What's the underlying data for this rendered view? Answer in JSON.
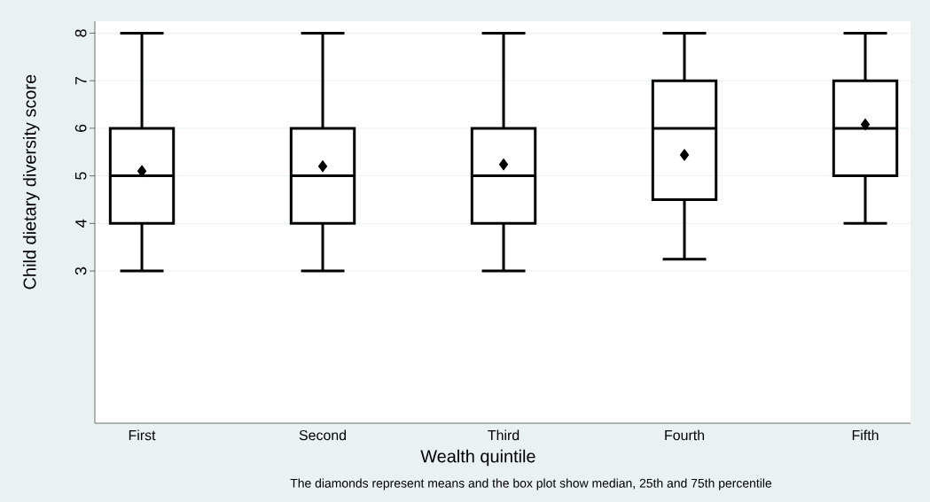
{
  "chart_data": {
    "type": "box",
    "xlabel": "Wealth quintile",
    "ylabel": "Child dietary diversity score",
    "categories": [
      "First",
      "Second",
      "Third",
      "Fourth",
      "Fifth"
    ],
    "boxes": [
      {
        "low": 3,
        "q1": 4,
        "median": 5,
        "q3": 6,
        "high": 8,
        "mean": 5.1
      },
      {
        "low": 3,
        "q1": 4,
        "median": 5,
        "q3": 6,
        "high": 8,
        "mean": 5.2
      },
      {
        "low": 3,
        "q1": 4,
        "median": 5,
        "q3": 6,
        "high": 8,
        "mean": 5.24
      },
      {
        "low": 3.25,
        "q1": 4.5,
        "median": 6,
        "q3": 7,
        "high": 8,
        "mean": 5.44
      },
      {
        "low": 4,
        "q1": 5,
        "median": 6,
        "q3": 7,
        "high": 8,
        "mean": 6.08
      }
    ],
    "color": "#000000",
    "marker": "diamond",
    "ylim": [
      -0.2,
      8.25
    ],
    "yticks": [
      3,
      4,
      5,
      6,
      7,
      8
    ],
    "grid": "y",
    "annotations": [
      "The diamonds represent means and the box plot show median, 25th and 75th percentile"
    ]
  }
}
